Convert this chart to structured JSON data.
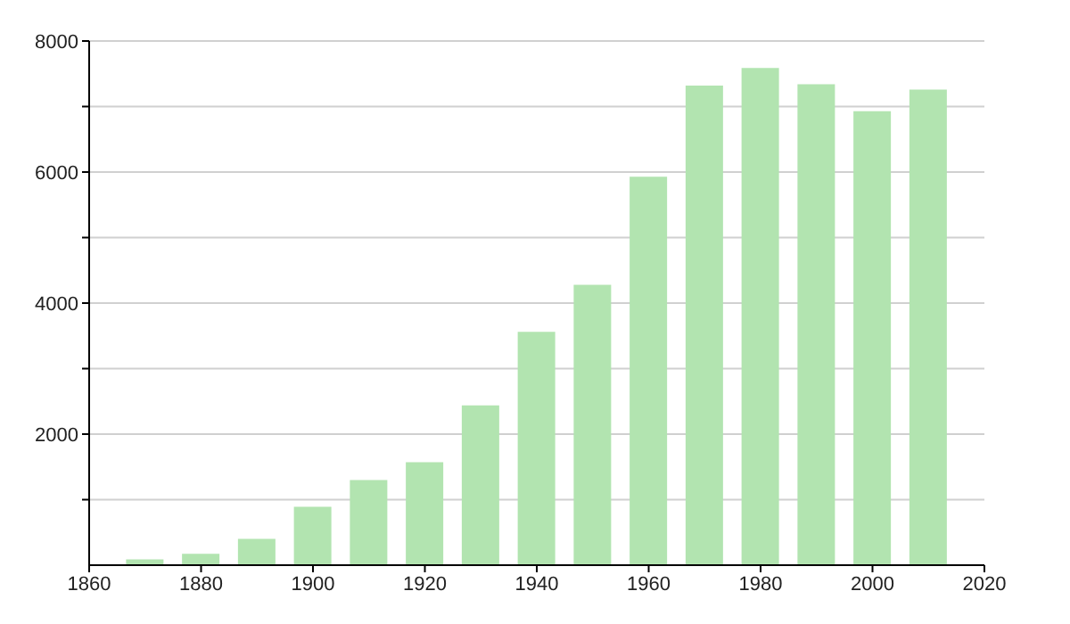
{
  "chart_data": {
    "type": "bar",
    "x": [
      1870,
      1880,
      1890,
      1900,
      1910,
      1920,
      1930,
      1940,
      1950,
      1960,
      1970,
      1980,
      1990,
      2000,
      2010
    ],
    "values": [
      90,
      175,
      400,
      890,
      1300,
      1570,
      2440,
      3560,
      4280,
      5930,
      7320,
      7590,
      7340,
      6930,
      7260
    ],
    "color": "#b2e4b0",
    "xlim": [
      1860,
      2020
    ],
    "xticks": [
      1860,
      1880,
      1900,
      1920,
      1940,
      1960,
      1980,
      2000,
      2020
    ],
    "ylim": [
      0,
      8000
    ],
    "yticks": [
      {
        "value": 1000,
        "label": null
      },
      2000,
      {
        "value": 3000,
        "label": null
      },
      4000,
      {
        "value": 5000,
        "label": null
      },
      6000,
      {
        "value": 7000,
        "label": null
      },
      8000
    ],
    "grid": "y"
  }
}
